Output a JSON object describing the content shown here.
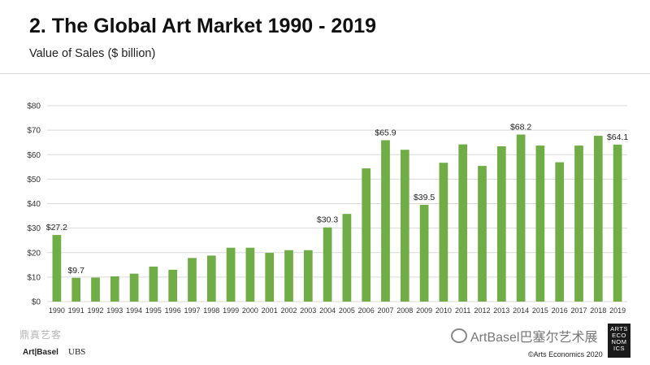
{
  "header": {
    "title": "2. The Global Art Market 1990 - 2019",
    "subtitle": "Value of Sales ($ billion)"
  },
  "footer": {
    "brand_left": "Art|Basel",
    "brand_ubs": "UBS",
    "seal_text": "鼎真艺客",
    "watermark": "ArtBasel巴塞尔艺术展",
    "copyright": "©Arts Economics 2020",
    "logo_lines": [
      "ARTS",
      "ECO",
      "NOM",
      "ICS"
    ]
  },
  "colors": {
    "bar": "#70ad47",
    "axis_text": "#333333",
    "grid": "#d9d9d9"
  },
  "chart_data": {
    "type": "bar",
    "title": "2. The Global Art Market 1990 - 2019",
    "ylabel": "Value of Sales ($ billion)",
    "xlabel": "",
    "ylim": [
      0,
      80
    ],
    "yticks": [
      "$0",
      "$10",
      "$20",
      "$30",
      "$40",
      "$50",
      "$60",
      "$70",
      "$80"
    ],
    "ytick_values": [
      0,
      10,
      20,
      30,
      40,
      50,
      60,
      70,
      80
    ],
    "grid": true,
    "categories": [
      "1990",
      "1991",
      "1992",
      "1993",
      "1994",
      "1995",
      "1996",
      "1997",
      "1998",
      "1999",
      "2000",
      "2001",
      "2002",
      "2003",
      "2004",
      "2005",
      "2006",
      "2007",
      "2008",
      "2009",
      "2010",
      "2011",
      "2012",
      "2013",
      "2014",
      "2015",
      "2016",
      "2017",
      "2018",
      "2019"
    ],
    "values": [
      27.2,
      9.7,
      9.8,
      10.3,
      11.4,
      14.3,
      13.0,
      17.8,
      18.8,
      22.0,
      22.0,
      19.9,
      21.0,
      21.0,
      30.3,
      35.8,
      54.4,
      65.9,
      62.0,
      39.5,
      56.7,
      64.2,
      55.4,
      63.4,
      68.2,
      63.7,
      56.9,
      63.7,
      67.7,
      64.1
    ],
    "data_labels": [
      {
        "index": 0,
        "label": "$27.2"
      },
      {
        "index": 1,
        "label": "$9.7"
      },
      {
        "index": 14,
        "label": "$30.3"
      },
      {
        "index": 17,
        "label": "$65.9"
      },
      {
        "index": 19,
        "label": "$39.5"
      },
      {
        "index": 24,
        "label": "$68.2"
      },
      {
        "index": 29,
        "label": "$64.1"
      }
    ]
  }
}
